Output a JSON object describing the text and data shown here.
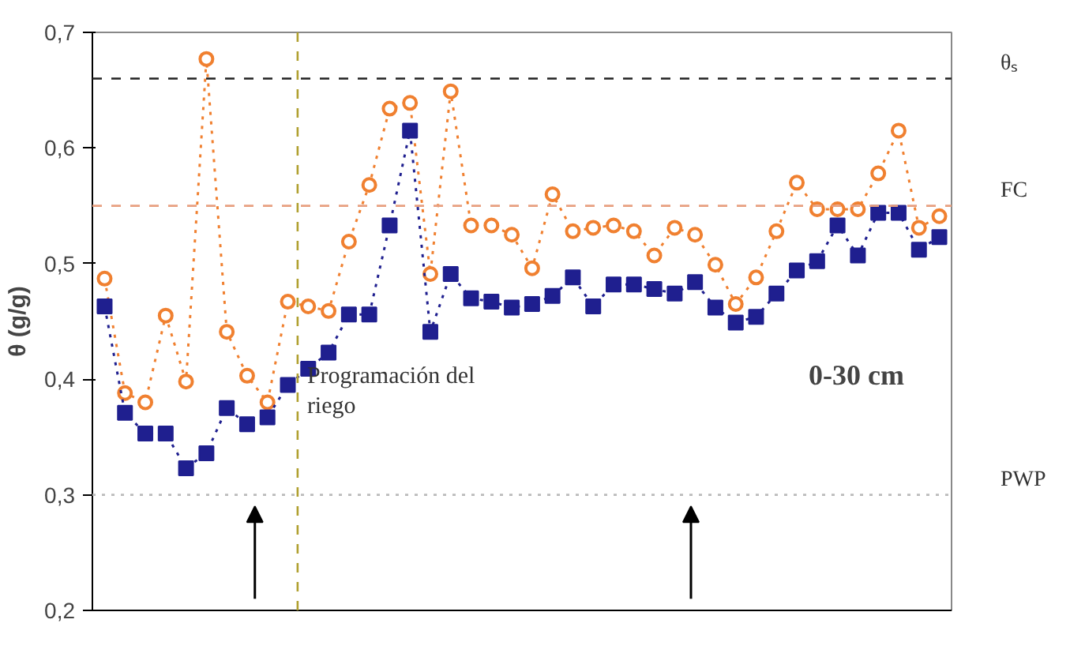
{
  "chart_data": {
    "type": "line",
    "ylabel": "θ (g/g)",
    "categories": [
      null,
      null,
      null,
      null,
      null,
      null,
      null,
      null,
      null,
      null,
      null,
      null,
      null,
      null,
      null,
      null,
      null,
      null,
      null,
      null,
      null,
      null,
      null,
      null,
      null,
      null,
      null,
      null,
      null,
      null,
      null,
      null,
      null,
      null,
      null,
      null,
      null,
      null,
      null,
      null,
      null,
      null
    ],
    "series": [
      {
        "color": "#f08030",
        "marker": "circle",
        "values": [
          0.487,
          0.388,
          0.38,
          0.455,
          0.398,
          0.677,
          0.441,
          0.403,
          0.38,
          0.467,
          0.463,
          0.459,
          0.519,
          0.568,
          0.634,
          0.639,
          0.491,
          0.649,
          0.533,
          0.533,
          0.525,
          0.496,
          0.56,
          0.528,
          0.531,
          0.533,
          0.528,
          0.507,
          0.531,
          0.525,
          0.499,
          0.465,
          0.488,
          0.528,
          0.57,
          0.547,
          0.547,
          0.547,
          0.578,
          0.615,
          0.531,
          0.541
        ]
      },
      {
        "color": "#1f1f8f",
        "marker": "square",
        "values": [
          0.463,
          0.371,
          0.353,
          0.353,
          0.323,
          0.336,
          0.375,
          0.361,
          0.367,
          0.395,
          0.409,
          0.423,
          0.456,
          0.456,
          0.533,
          0.615,
          0.441,
          0.491,
          0.47,
          0.467,
          0.462,
          0.465,
          0.472,
          0.488,
          0.463,
          0.482,
          0.482,
          0.478,
          0.474,
          0.484,
          0.462,
          0.449,
          0.454,
          0.474,
          0.494,
          0.502,
          0.533,
          0.507,
          0.544,
          0.544,
          0.512,
          0.523
        ]
      }
    ],
    "line_style": "dotted",
    "ylim": [
      0.2,
      0.7
    ],
    "yticks": [
      {
        "value": 0.2,
        "label": "0,2"
      },
      {
        "value": 0.3,
        "label": "0,3"
      },
      {
        "value": 0.4,
        "label": "0,4"
      },
      {
        "value": 0.5,
        "label": "0,5"
      },
      {
        "value": 0.6,
        "label": "0,6"
      },
      {
        "value": 0.7,
        "label": "0,7"
      }
    ],
    "ref_lines": [
      {
        "axis": "y",
        "value": 0.66,
        "label": "θₛ",
        "color": "#222222",
        "line_style": "dashed"
      },
      {
        "axis": "y",
        "value": 0.55,
        "label": "FC",
        "color": "#e8a080",
        "line_style": "dashed"
      },
      {
        "axis": "y",
        "value": 0.3,
        "label": "PWP",
        "color": "#bbbbbb",
        "line_style": "dotted"
      }
    ],
    "annotations": [
      "Programación del riego",
      "0-30 cm"
    ],
    "grid": false,
    "tick_labels": "y"
  }
}
